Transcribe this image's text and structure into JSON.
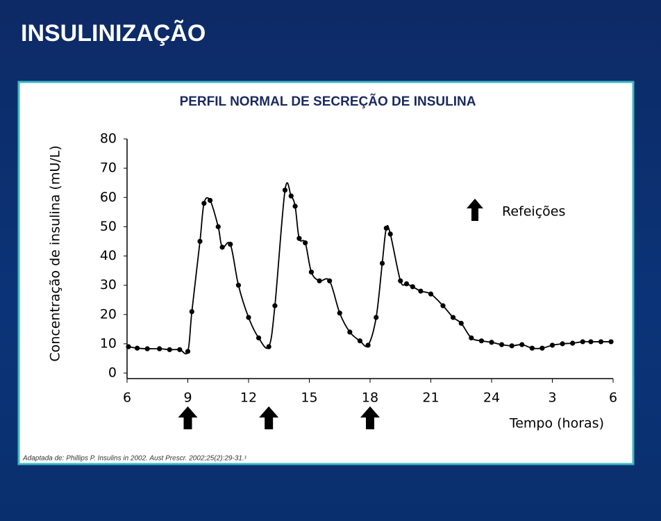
{
  "header": {
    "title": "INSULINIZAÇÃO"
  },
  "chart_data": {
    "type": "line",
    "title": "PERFIL NORMAL DE SECREÇÃO DE INSULINA",
    "y_label": "Concentração de insulina (mU/L)",
    "x_label": "Tempo (horas)",
    "legend_label": "Refeições",
    "meal_times": [
      9,
      13,
      18
    ],
    "source": "Adaptada de: Phillips P. Insulins in 2002. Aust Prescr. 2002;25(2):29-31.¹",
    "color": "#000000",
    "xlim": [
      6,
      30
    ],
    "xticks": [
      6,
      9,
      12,
      15,
      18,
      21,
      24,
      {
        "value": 27,
        "label": "3"
      },
      {
        "value": 30,
        "label": "6"
      }
    ],
    "ylim": [
      0,
      80
    ],
    "yticks": [
      0,
      10,
      20,
      30,
      40,
      50,
      60,
      70,
      80
    ],
    "x": [
      6.07,
      6.5,
      7.0,
      7.6,
      8.1,
      8.6,
      9.0,
      9.2,
      9.6,
      9.8,
      10.1,
      10.5,
      10.7,
      11.1,
      11.5,
      12.0,
      12.5,
      13.0,
      13.3,
      13.8,
      14.1,
      14.3,
      14.5,
      14.8,
      15.1,
      15.5,
      16.0,
      16.5,
      17.0,
      17.5,
      17.9,
      18.3,
      18.6,
      18.8,
      19.0,
      19.5,
      19.8,
      20.1,
      20.5,
      21.0,
      21.6,
      22.1,
      22.5,
      23.0,
      23.5,
      24.0,
      24.5,
      25.0,
      25.5,
      26.0,
      26.5,
      27.0,
      27.5,
      28.0,
      28.5,
      28.9,
      29.4,
      29.9
    ],
    "values": [
      9,
      8.5,
      8.3,
      8.3,
      8,
      8,
      7.4,
      21,
      45,
      58,
      59,
      50,
      43,
      44,
      30,
      19,
      12,
      9,
      23,
      62.5,
      60.5,
      57,
      46,
      44.5,
      34.5,
      31.5,
      31.5,
      20.5,
      14,
      11,
      9.5,
      19,
      37.5,
      49.5,
      47.5,
      31.5,
      30.5,
      29.5,
      28,
      27,
      23,
      19,
      17,
      12,
      11,
      10.5,
      9.7,
      9.3,
      9.7,
      8.5,
      8.5,
      9.5,
      10,
      10.2,
      10.7,
      10.7,
      10.7,
      10.7
    ]
  }
}
